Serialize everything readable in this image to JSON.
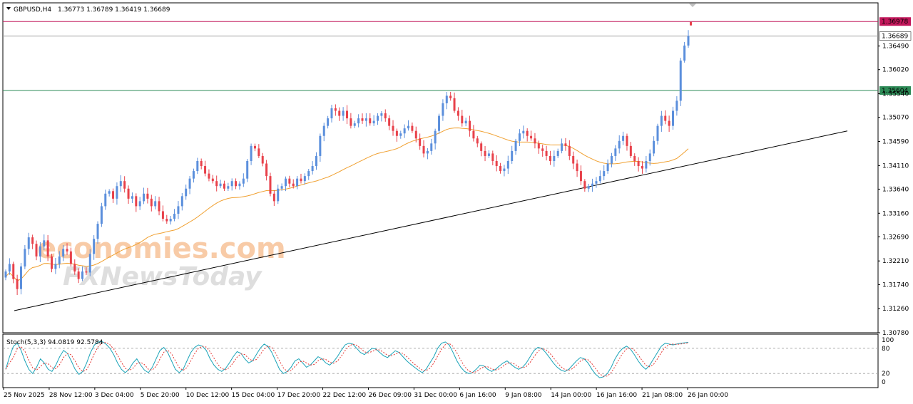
{
  "header": {
    "symbol": "GBPUSD,H4",
    "ohlc": "1.36773 1.36789 1.36419 1.36689"
  },
  "watermark": {
    "line1": "economies.com",
    "line2": "FXNewsToday"
  },
  "colors": {
    "bull": "#5b8fdc",
    "bear": "#e8414a",
    "ma": "#f0a030",
    "resistance_line": "#c2185b",
    "support_line": "#2e8b57",
    "trendline": "#000000",
    "stoch_main": "#1aa3b8",
    "stoch_signal": "#e53935"
  },
  "chart_data": [
    {
      "type": "candlestick",
      "title": "GBPUSD,H4",
      "price_ticks": [
        "1.36490",
        "1.36020",
        "1.35540",
        "1.35070",
        "1.34590",
        "1.34110",
        "1.33640",
        "1.33160",
        "1.32690",
        "1.32210",
        "1.31740",
        "1.31260",
        "1.30780"
      ],
      "ylim": [
        1.3078,
        1.3735
      ],
      "x_ticks": [
        "25 Nov 2025",
        "28 Nov 12:00",
        "3 Dec 04:00",
        "5 Dec 20:00",
        "10 Dec 12:00",
        "15 Dec 04:00",
        "17 Dec 20:00",
        "22 Dec 12:00",
        "26 Dec 09:00",
        "31 Dec 00:00",
        "6 Jan 16:00",
        "9 Jan 08:00",
        "14 Jan 00:00",
        "16 Jan 16:00",
        "21 Jan 08:00",
        "26 Jan 00:00"
      ],
      "horizontal_lines": [
        {
          "label": "1.36978",
          "value": 1.36978
        },
        {
          "label": "1.36689",
          "value": 1.36689
        },
        {
          "label": "1.35604",
          "value": 1.35604
        }
      ],
      "trendline": {
        "from": [
          0,
          1.3122
        ],
        "to": [
          1,
          1.348
        ]
      },
      "closes": [
        1.32,
        1.3215,
        1.3185,
        1.3165,
        1.321,
        1.3245,
        1.3268,
        1.3255,
        1.323,
        1.325,
        1.3262,
        1.323,
        1.3205,
        1.3215,
        1.323,
        1.3245,
        1.324,
        1.3215,
        1.32,
        1.3185,
        1.32,
        1.3198,
        1.3235,
        1.3265,
        1.3295,
        1.333,
        1.3355,
        1.336,
        1.3345,
        1.337,
        1.338,
        1.3365,
        1.3345,
        1.335,
        1.333,
        1.334,
        1.3355,
        1.3345,
        1.333,
        1.334,
        1.332,
        1.3305,
        1.33,
        1.3305,
        1.3315,
        1.333,
        1.335,
        1.3365,
        1.3385,
        1.34,
        1.342,
        1.341,
        1.3395,
        1.3385,
        1.338,
        1.337,
        1.3375,
        1.3365,
        1.337,
        1.338,
        1.337,
        1.3375,
        1.3385,
        1.342,
        1.345,
        1.3445,
        1.343,
        1.3415,
        1.339,
        1.3355,
        1.334,
        1.3365,
        1.337,
        1.3385,
        1.3375,
        1.337,
        1.3385,
        1.338,
        1.339,
        1.34,
        1.341,
        1.343,
        1.347,
        1.349,
        1.3505,
        1.3525,
        1.352,
        1.351,
        1.352,
        1.3505,
        1.349,
        1.3495,
        1.3505,
        1.35,
        1.3505,
        1.3495,
        1.35,
        1.351,
        1.3515,
        1.3505,
        1.349,
        1.348,
        1.347,
        1.3475,
        1.3485,
        1.349,
        1.348,
        1.3465,
        1.345,
        1.3435,
        1.344,
        1.3455,
        1.348,
        1.351,
        1.3535,
        1.355,
        1.3545,
        1.352,
        1.351,
        1.3495,
        1.35,
        1.348,
        1.3465,
        1.3455,
        1.344,
        1.343,
        1.3435,
        1.342,
        1.341,
        1.34,
        1.3405,
        1.342,
        1.344,
        1.346,
        1.3475,
        1.348,
        1.347,
        1.3465,
        1.3455,
        1.3445,
        1.344,
        1.343,
        1.342,
        1.343,
        1.344,
        1.3455,
        1.345,
        1.343,
        1.3415,
        1.34,
        1.338,
        1.3365,
        1.337,
        1.3375,
        1.338,
        1.339,
        1.34,
        1.3415,
        1.343,
        1.3445,
        1.346,
        1.347,
        1.345,
        1.343,
        1.342,
        1.341,
        1.3405,
        1.342,
        1.3435,
        1.346,
        1.349,
        1.351,
        1.35,
        1.349,
        1.352,
        1.354,
        1.362,
        1.365,
        1.3669
      ],
      "ma_period": 34
    },
    {
      "type": "line",
      "title": "Stoch(5,3,3) 94.0819 92.5784",
      "ylim": [
        0,
        100
      ],
      "levels": [
        {
          "label": "80",
          "value": 80
        },
        {
          "label": "20",
          "value": 20
        }
      ],
      "y_ticks": [
        "100",
        "0"
      ],
      "main": [
        30,
        60,
        85,
        92,
        75,
        50,
        30,
        20,
        35,
        55,
        45,
        30,
        25,
        40,
        60,
        75,
        68,
        50,
        30,
        18,
        25,
        45,
        70,
        88,
        95,
        96,
        90,
        80,
        65,
        45,
        30,
        22,
        30,
        45,
        55,
        40,
        28,
        22,
        35,
        55,
        75,
        82,
        70,
        50,
        30,
        22,
        30,
        50,
        70,
        82,
        88,
        85,
        75,
        55,
        40,
        30,
        25,
        32,
        45,
        60,
        72,
        68,
        55,
        45,
        50,
        65,
        80,
        90,
        85,
        70,
        50,
        30,
        20,
        25,
        35,
        50,
        55,
        45,
        35,
        40,
        50,
        60,
        55,
        45,
        40,
        48,
        60,
        75,
        88,
        92,
        90,
        80,
        70,
        65,
        72,
        80,
        78,
        70,
        62,
        58,
        66,
        74,
        70,
        60,
        50,
        42,
        35,
        28,
        22,
        30,
        45,
        60,
        80,
        92,
        95,
        88,
        70,
        50,
        35,
        25,
        20,
        22,
        30,
        40,
        38,
        30,
        25,
        30,
        38,
        45,
        50,
        42,
        35,
        30,
        35,
        45,
        60,
        75,
        82,
        80,
        70,
        58,
        45,
        35,
        28,
        25,
        30,
        40,
        50,
        58,
        55,
        45,
        30,
        18,
        10,
        12,
        20,
        35,
        55,
        70,
        80,
        85,
        78,
        65,
        50,
        38,
        30,
        40,
        55,
        70,
        85,
        92,
        90,
        88,
        90,
        92,
        93,
        94
      ]
    }
  ]
}
